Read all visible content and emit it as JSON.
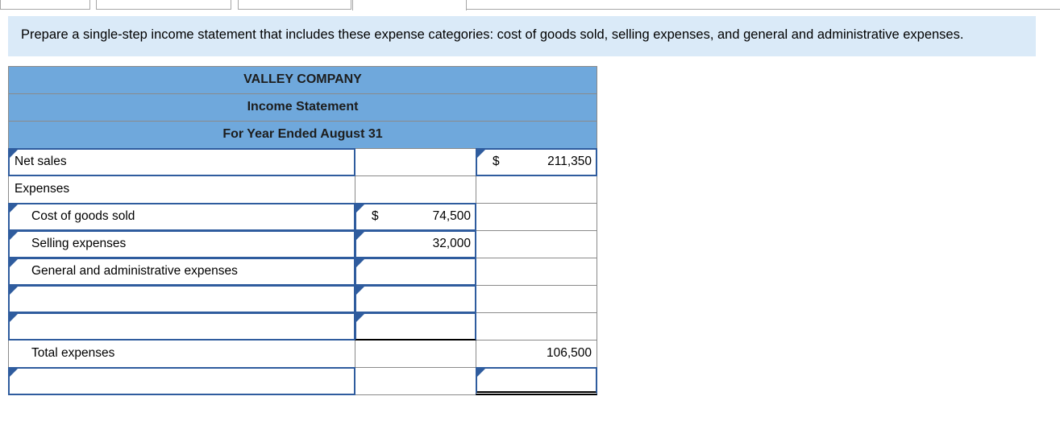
{
  "instruction": {
    "text": "Prepare a single-step income statement that includes these expense categories: cost of goods sold, selling expenses, and general and administrative expenses."
  },
  "statement": {
    "title": "VALLEY COMPANY",
    "subtitle": "Income Statement",
    "period": "For Year Ended August 31",
    "rows": [
      {
        "label": "Net sales",
        "indent": false,
        "label_input": true,
        "mid": {
          "dollar": "",
          "value": "",
          "input": false
        },
        "right": {
          "dollar": "$",
          "value": "211,350",
          "input": true
        }
      },
      {
        "label": "Expenses",
        "indent": false,
        "label_input": false,
        "mid": {
          "dollar": "",
          "value": "",
          "input": false
        },
        "right": {
          "dollar": "",
          "value": "",
          "input": false
        }
      },
      {
        "label": "Cost of goods sold",
        "indent": true,
        "label_input": true,
        "mid": {
          "dollar": "$",
          "value": "74,500",
          "input": true
        },
        "right": {
          "dollar": "",
          "value": "",
          "input": false
        }
      },
      {
        "label": "Selling expenses",
        "indent": true,
        "label_input": true,
        "mid": {
          "dollar": "",
          "value": "32,000",
          "input": true
        },
        "right": {
          "dollar": "",
          "value": "",
          "input": false
        }
      },
      {
        "label": "General and administrative expenses",
        "indent": true,
        "label_input": true,
        "mid": {
          "dollar": "",
          "value": "",
          "input": true
        },
        "right": {
          "dollar": "",
          "value": "",
          "input": false
        }
      },
      {
        "label": "",
        "indent": false,
        "label_input": true,
        "mid": {
          "dollar": "",
          "value": "",
          "input": true
        },
        "right": {
          "dollar": "",
          "value": "",
          "input": false
        }
      },
      {
        "label": "",
        "indent": false,
        "label_input": true,
        "mid": {
          "dollar": "",
          "value": "",
          "input": true,
          "rule": "single"
        },
        "right": {
          "dollar": "",
          "value": "",
          "input": false
        }
      },
      {
        "label": "Total expenses",
        "indent": true,
        "label_input": false,
        "mid": {
          "dollar": "",
          "value": "",
          "input": false
        },
        "right": {
          "dollar": "",
          "value": "106,500",
          "input": false
        }
      },
      {
        "label": "",
        "indent": false,
        "label_input": true,
        "mid": {
          "dollar": "",
          "value": "",
          "input": false
        },
        "right": {
          "dollar": "",
          "value": "",
          "input": true,
          "rule": "double"
        }
      }
    ]
  }
}
